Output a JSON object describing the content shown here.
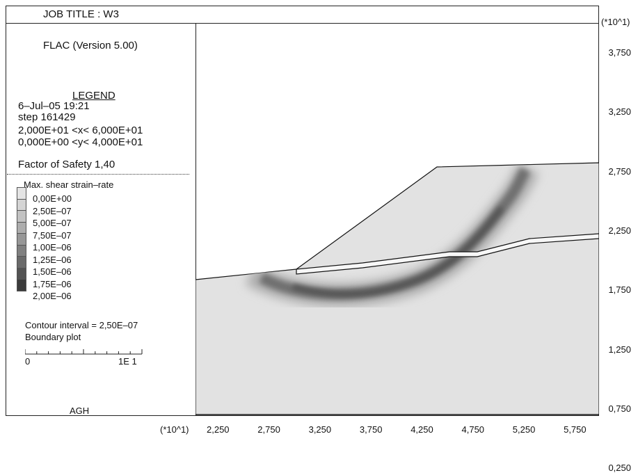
{
  "header": {
    "job_title": "JOB TITLE : W3",
    "y_multiplier": "(*10^1)"
  },
  "legend": {
    "program": "FLAC (Version 5.00)",
    "title": "LEGEND",
    "date_time": "6–Jul–05  19:21",
    "step": "step   161429",
    "x_range": "2,000E+01 <x<  6,000E+01",
    "y_range": "0,000E+00 <y<  4,000E+01",
    "factor_of_safety": "Factor of Safety  1,40",
    "contour_title": "Max. shear strain–rate",
    "contour_levels": [
      "0,00E+00",
      "2,50E–07",
      "5,00E–07",
      "7,50E–07",
      "1,00E–06",
      "1,25E–06",
      "1,50E–06",
      "1,75E–06",
      "2,00E–06"
    ],
    "contour_colors": [
      "#e4e4e4",
      "#d4d4d4",
      "#c2c2c2",
      "#adadad",
      "#979797",
      "#808080",
      "#6a6a6a",
      "#535353",
      "#3b3b3b"
    ],
    "contour_interval": "Contour interval = 2,50E–07",
    "boundary_plot": "Boundary plot",
    "scale_min": "0",
    "scale_max": "1E  1",
    "org": "AGH"
  },
  "axes": {
    "x_multiplier": "(*10^1)",
    "x_ticks": [
      "2,250",
      "2,750",
      "3,250",
      "3,750",
      "4,250",
      "4,750",
      "5,250",
      "5,750"
    ],
    "y_ticks": [
      "3,750",
      "3,250",
      "2,750",
      "2,250",
      "1,750",
      "1,250",
      "0,750",
      "0,250"
    ]
  }
}
